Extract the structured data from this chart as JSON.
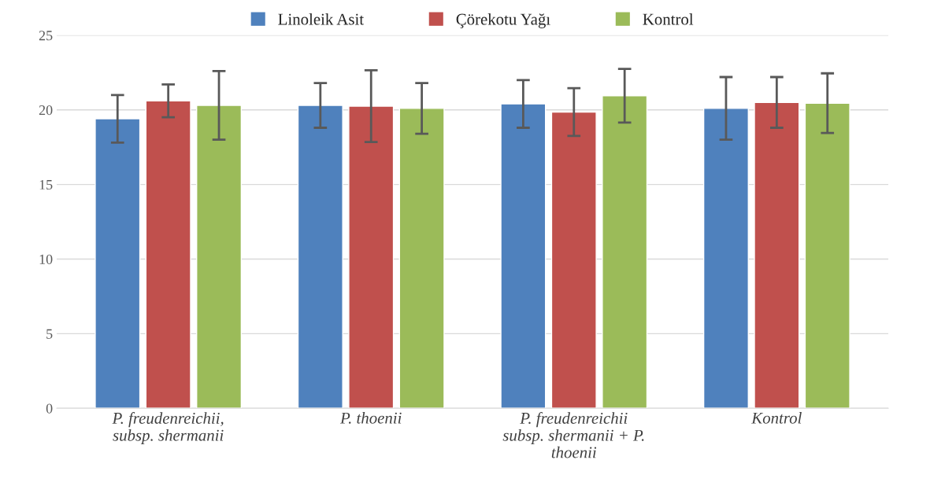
{
  "chart_data": {
    "type": "bar",
    "categories": [
      "P. freudenreichii,\nsubsp. shermanii",
      "P. thoenii",
      "P. freudenreichii\nsubsp. shermanii + P.\nthoenii",
      "Kontrol"
    ],
    "series": [
      {
        "name": "Linoleik Asit",
        "color": "#4f81bd",
        "values": [
          19.4,
          20.3,
          20.4,
          20.1
        ],
        "errors": [
          1.6,
          1.5,
          1.6,
          2.1
        ]
      },
      {
        "name": "Çörekotu Yağı",
        "color": "#c0504d",
        "values": [
          20.6,
          20.25,
          19.85,
          20.5
        ],
        "errors": [
          1.1,
          2.4,
          1.6,
          1.7
        ]
      },
      {
        "name": "Kontrol",
        "color": "#9bbb59",
        "values": [
          20.3,
          20.1,
          20.95,
          20.45
        ],
        "errors": [
          2.3,
          1.7,
          1.8,
          2.0
        ]
      }
    ],
    "ylim": [
      0,
      25
    ],
    "yticks": [
      0,
      5,
      10,
      15,
      20,
      25
    ],
    "grid": "y",
    "legend": "top"
  }
}
